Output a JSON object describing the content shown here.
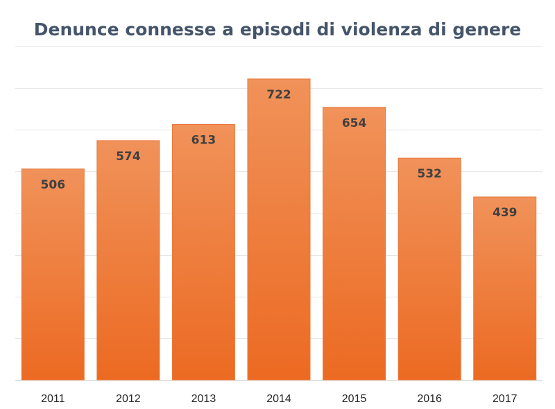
{
  "chart_data": {
    "type": "bar",
    "title": "Denunce connesse a episodi di violenza di genere",
    "categories": [
      "2011",
      "2012",
      "2013",
      "2014",
      "2015",
      "2016",
      "2017"
    ],
    "values": [
      506,
      574,
      613,
      722,
      654,
      532,
      439
    ],
    "xlabel": "",
    "ylabel": "",
    "ylim": [
      0,
      800
    ],
    "grid": true,
    "legend": "none",
    "y_tick_labels_visible": false,
    "data_labels": "inside-top",
    "colors": {
      "bar_top": "#f0925a",
      "bar_bottom": "#ec6a22",
      "bar_edge": "#e8783a",
      "grid": "#e6e6e6",
      "title": "#44546a",
      "data_label": "#404040"
    }
  }
}
